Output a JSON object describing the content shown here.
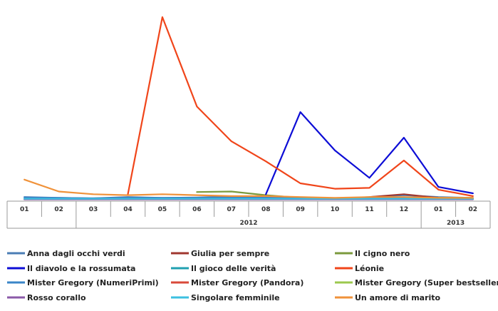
{
  "chart_data": {
    "type": "line",
    "title": "",
    "xlabel": "",
    "ylabel": "",
    "ylim": [
      0,
      100
    ],
    "grid": false,
    "legend_position": "bottom",
    "categories": [
      "01",
      "02",
      "03",
      "04",
      "05",
      "06",
      "07",
      "08",
      "09",
      "10",
      "11",
      "12",
      "01",
      "02"
    ],
    "year_groups": [
      {
        "label": "2012",
        "start": 2,
        "end": 11
      },
      {
        "label": "2013",
        "start": 12,
        "end": 13
      }
    ],
    "series": [
      {
        "name": "Anna dagli occhi verdi",
        "color": "#4a7db5",
        "values": [
          1.5,
          1.0,
          0.8,
          1.5,
          1.0,
          1.2,
          1.8,
          1.5,
          0.5,
          0.3,
          1.5,
          2.5,
          1.5,
          1.0
        ]
      },
      {
        "name": "Giulia per sempre",
        "color": "#a0372f",
        "values": [
          null,
          null,
          null,
          null,
          null,
          null,
          null,
          null,
          null,
          null,
          1.5,
          3.0,
          1.0,
          null
        ]
      },
      {
        "name": "Il cigno nero",
        "color": "#7b9a3c",
        "values": [
          null,
          null,
          null,
          null,
          null,
          4.2,
          4.5,
          2.5,
          1.0,
          null,
          null,
          null,
          null,
          null
        ]
      },
      {
        "name": "Il diavolo e la rossumata",
        "color": "#0d0dd6",
        "values": [
          null,
          null,
          null,
          null,
          null,
          null,
          null,
          3.0,
          48.0,
          27.0,
          12.0,
          34.0,
          7.0,
          3.5
        ]
      },
      {
        "name": "Il gioco delle verità",
        "color": "#20a0b0",
        "values": [
          0.5,
          0.5,
          0.3,
          0.5,
          0.4,
          0.5,
          0.5,
          0.5,
          0.4,
          0.3,
          0.5,
          0.5,
          0.4,
          0.5
        ]
      },
      {
        "name": "Léonie",
        "color": "#f0451a",
        "values": [
          null,
          null,
          null,
          3.0,
          100.0,
          51.0,
          32.0,
          21.0,
          9.0,
          6.0,
          6.5,
          21.5,
          5.5,
          2.0
        ]
      },
      {
        "name": "Mister Gregory (NumeriPrimi)",
        "color": "#3a86c8",
        "values": [
          1.2,
          1.0,
          0.8,
          1.0,
          1.0,
          1.0,
          1.2,
          1.0,
          0.8,
          0.8,
          1.0,
          1.0,
          0.8,
          0.8
        ]
      },
      {
        "name": "Mister Gregory (Pandora)",
        "color": "#d94a3a",
        "values": [
          0.3,
          0.3,
          0.3,
          0.3,
          0.3,
          0.3,
          0.3,
          0.3,
          0.3,
          0.3,
          0.3,
          0.3,
          0.3,
          0.3
        ]
      },
      {
        "name": "Mister Gregory (Super bestseller)",
        "color": "#9cc94e",
        "values": [
          null,
          null,
          null,
          null,
          null,
          null,
          null,
          null,
          null,
          null,
          null,
          null,
          1.0,
          1.0
        ]
      },
      {
        "name": "Rosso corallo",
        "color": "#8b5aa8",
        "values": [
          0.2,
          0.2,
          0.2,
          0.2,
          0.2,
          0.2,
          0.2,
          0.2,
          0.2,
          0.2,
          0.2,
          0.2,
          0.2,
          0.2
        ]
      },
      {
        "name": "Singolare femminile",
        "color": "#3cc0e0",
        "values": [
          0.5,
          0.5,
          0.5,
          0.5,
          0.5,
          0.5,
          0.5,
          0.5,
          0.5,
          0.5,
          0.5,
          0.5,
          0.5,
          0.5
        ]
      },
      {
        "name": "Un amore di marito",
        "color": "#f0923a",
        "values": [
          11.0,
          4.5,
          3.0,
          2.5,
          3.0,
          2.5,
          2.0,
          2.0,
          1.5,
          1.0,
          1.5,
          1.5,
          1.0,
          1.0
        ]
      }
    ]
  }
}
